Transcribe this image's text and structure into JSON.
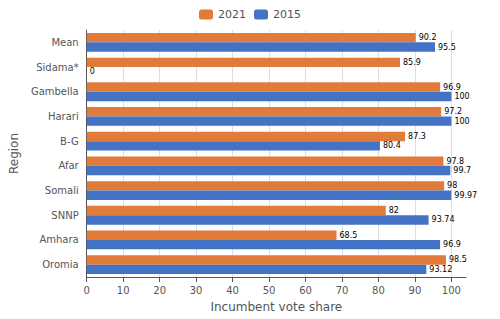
{
  "chart_data": {
    "type": "bar",
    "orientation": "horizontal",
    "categories": [
      "Oromia",
      "Amhara",
      "SNNP",
      "Somali",
      "Afar",
      "B-G",
      "Harari",
      "Gambella",
      "Sidama*",
      "Mean"
    ],
    "series": [
      {
        "name": "2021",
        "color": "#E07B39",
        "values": [
          98.5,
          68.5,
          82,
          98,
          97.8,
          87.3,
          97.2,
          96.9,
          85.9,
          90.2
        ]
      },
      {
        "name": "2015",
        "color": "#4472C4",
        "values": [
          93.12,
          96.9,
          93.74,
          99.97,
          99.7,
          80.4,
          100,
          100,
          0,
          95.5
        ]
      }
    ],
    "xlabel": "Incumbent vote share",
    "ylabel": "Region",
    "xlim": [
      0,
      104
    ],
    "xticks": [
      0,
      10,
      20,
      30,
      40,
      50,
      60,
      70,
      80,
      90,
      100
    ],
    "grid": "x",
    "legend": "top",
    "data_labels": true
  }
}
